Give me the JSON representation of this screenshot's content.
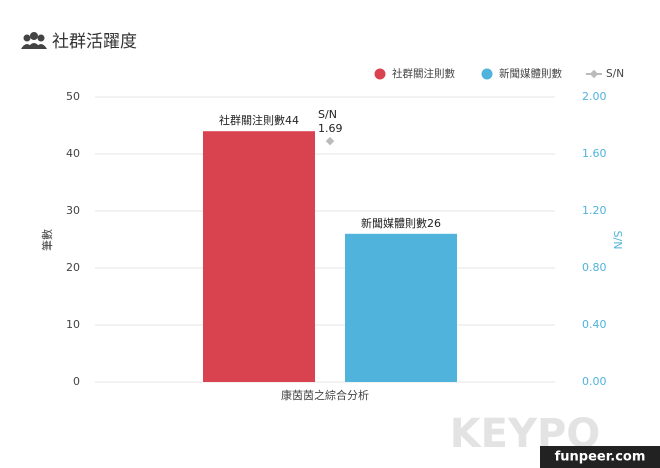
{
  "chart_data": {
    "type": "bar",
    "title": "社群活躍度",
    "categories": [
      "康茵茵之綜合分析"
    ],
    "series": [
      {
        "name": "社群關注則數",
        "color": "#d9434f",
        "values": [
          44
        ]
      },
      {
        "name": "新聞媒體則數",
        "color": "#4fb3dc",
        "values": [
          26
        ]
      },
      {
        "name": "S/N",
        "color": "#bbbbbb",
        "values": [
          1.69
        ],
        "axis": "y2",
        "type": "line"
      }
    ],
    "ylabel": "筆數",
    "y2label": "S/N",
    "ylim": [
      0,
      50
    ],
    "yticks": [
      0,
      10,
      20,
      30,
      40,
      50
    ],
    "y2lim": [
      0,
      2
    ],
    "y2ticks": [
      {
        "value": 0,
        "label": "0.00"
      },
      {
        "value": 0.4,
        "label": "0.40"
      },
      {
        "value": 0.8,
        "label": "0.80"
      },
      {
        "value": 1.2,
        "label": "1.20"
      },
      {
        "value": 1.6,
        "label": "1.60"
      },
      {
        "value": 2,
        "label": "2.00"
      }
    ],
    "grid": true,
    "legend": "top-right"
  },
  "watermark": [
    "KEYPO",
    "funpeer.com"
  ]
}
